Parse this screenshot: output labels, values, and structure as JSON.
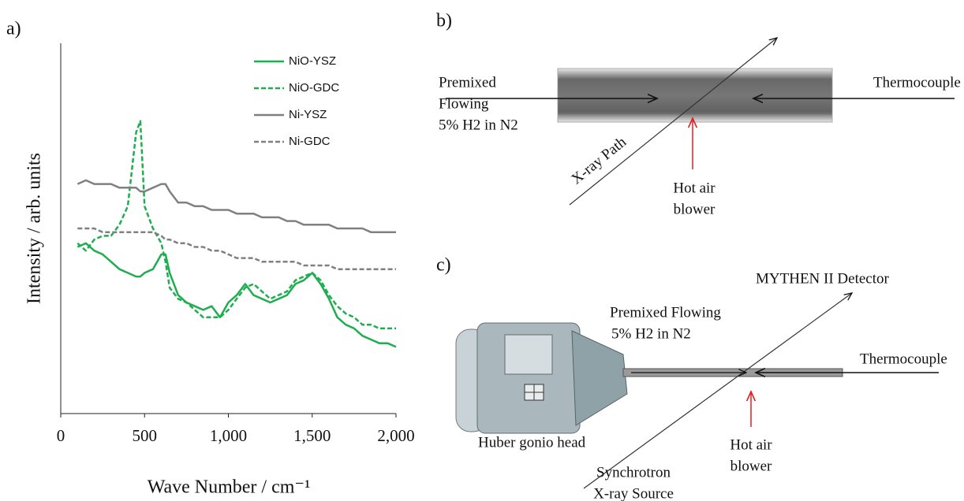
{
  "chart_data": {
    "type": "line",
    "panel_label": "a)",
    "xlabel": "Wave Number / cm⁻¹",
    "ylabel": "Intensity / arb. units",
    "xlim": [
      0,
      2000
    ],
    "xticks": [
      0,
      500,
      {
        "value": 1000,
        "label": "1,000"
      },
      {
        "value": 1500,
        "label": "1,500"
      },
      {
        "value": 2000,
        "label": "2,000"
      }
    ],
    "ylim": [
      0,
      100
    ],
    "legend": "upper right",
    "x": [
      100,
      150,
      200,
      250,
      300,
      350,
      400,
      450,
      475,
      500,
      550,
      600,
      625,
      650,
      700,
      750,
      800,
      850,
      900,
      950,
      1000,
      1050,
      1100,
      1150,
      1200,
      1250,
      1300,
      1350,
      1400,
      1450,
      1500,
      1550,
      1600,
      1650,
      1700,
      1750,
      1800,
      1850,
      1900,
      1950,
      2000
    ],
    "series": [
      {
        "name": "NiO-YSZ",
        "color": "#1fae4f",
        "dashed": false,
        "values": [
          45,
          46,
          44,
          43,
          41,
          39,
          38,
          37,
          37,
          38,
          39,
          43,
          43,
          38,
          32,
          30,
          29,
          28,
          29,
          26,
          30,
          32,
          35,
          32,
          31,
          30,
          31,
          32,
          35,
          36,
          38,
          35,
          31,
          26,
          24,
          23,
          21,
          20,
          19,
          19,
          18
        ]
      },
      {
        "name": "NiO-GDC",
        "color": "#1fae4f",
        "dashed": true,
        "values": [
          46,
          44,
          47,
          48,
          48,
          51,
          56,
          76,
          79,
          56,
          50,
          46,
          41,
          34,
          31,
          30,
          28,
          26,
          26,
          26,
          28,
          31,
          34,
          35,
          33,
          31,
          32,
          33,
          36,
          37,
          38,
          36,
          32,
          29,
          27,
          26,
          24,
          24,
          23,
          23,
          23
        ]
      },
      {
        "name": "Ni-YSZ",
        "color": "#808080",
        "dashed": false,
        "values": [
          62,
          63,
          62,
          62,
          62,
          61,
          61,
          61,
          60,
          60,
          61,
          62,
          62,
          60,
          57,
          57,
          56,
          56,
          55,
          55,
          55,
          54,
          54,
          54,
          53,
          53,
          53,
          52,
          52,
          51,
          51,
          51,
          51,
          50,
          50,
          50,
          50,
          49,
          49,
          49,
          49
        ]
      },
      {
        "name": "Ni-GDC",
        "color": "#808080",
        "dashed": true,
        "values": [
          50,
          50,
          50,
          49,
          49,
          49,
          49,
          49,
          49,
          49,
          49,
          48,
          47,
          47,
          46,
          46,
          45,
          45,
          44,
          44,
          43,
          42,
          42,
          42,
          41,
          41,
          41,
          41,
          41,
          40,
          40,
          40,
          40,
          39,
          39,
          39,
          39,
          39,
          39,
          39,
          39
        ]
      }
    ]
  },
  "panels": {
    "b": {
      "label": "b)",
      "gas": [
        "Premixed",
        "Flowing",
        "5% H2 in N2"
      ],
      "thermocouple": "Thermocouple",
      "xray": "X-ray Path",
      "blower": [
        "Hot air",
        "blower"
      ]
    },
    "c": {
      "label": "c)",
      "detector": "MYTHEN II Detector",
      "gas": [
        "Premixed Flowing",
        "5% H2 in N2"
      ],
      "thermocouple": "Thermocouple",
      "head": "Huber gonio head",
      "source": [
        "Synchrotron",
        "X-ray Source"
      ],
      "blower": [
        "Hot air",
        "blower"
      ]
    }
  }
}
